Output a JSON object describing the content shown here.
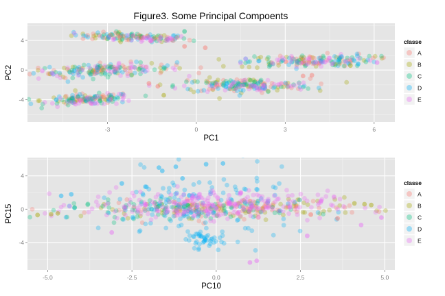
{
  "figure_title": "Figure3. Some Principal Compoents",
  "colors": {
    "panel_bg": "#E5E5E5",
    "grid_major": "#FFFFFF",
    "grid_minor": "#F2F2F2",
    "A": "#F8766D",
    "B": "#A3A500",
    "C": "#00BF7D",
    "D": "#00B0F6",
    "E": "#E76BF3"
  },
  "chart_data": [
    {
      "type": "scatter",
      "title": "Figure3. Some Principal Compoents",
      "xlabel": "PC1",
      "ylabel": "PC2",
      "xlim": [
        -5.7,
        6.7
      ],
      "ylim": [
        -7,
        6.3
      ],
      "xticks": [
        -3,
        0,
        3,
        6
      ],
      "yticks": [
        -4,
        0,
        4
      ],
      "grid": true,
      "alpha": 0.3,
      "legend": {
        "title": "classe",
        "position": "right",
        "entries": [
          "A",
          "B",
          "C",
          "D",
          "E"
        ]
      },
      "clusters": [
        {
          "center": [
            -2.1,
            4.4
          ],
          "spread": [
            0.95,
            0.28
          ],
          "tilt": -0.15,
          "classes": [
            "B",
            "D",
            "C",
            "A",
            "E"
          ],
          "n": 150
        },
        {
          "center": [
            -3.1,
            0.0
          ],
          "spread": [
            1.2,
            0.42
          ],
          "tilt": 0.12,
          "classes": [
            "B",
            "A",
            "D",
            "C",
            "E"
          ],
          "n": 190
        },
        {
          "center": [
            -3.6,
            -3.95
          ],
          "spread": [
            0.75,
            0.35
          ],
          "tilt": 0.15,
          "classes": [
            "B",
            "A",
            "D",
            "C",
            "E"
          ],
          "n": 160
        },
        {
          "center": [
            1.6,
            -2.1
          ],
          "spread": [
            1.15,
            0.45
          ],
          "tilt": 0.0,
          "classes": [
            "B",
            "A",
            "C",
            "D",
            "E"
          ],
          "n": 200
        },
        {
          "center": [
            3.8,
            1.2
          ],
          "spread": [
            1.1,
            0.42
          ],
          "tilt": 0.1,
          "classes": [
            "B",
            "A",
            "C",
            "D",
            "E"
          ],
          "n": 180
        }
      ],
      "outliers": [
        {
          "class": "A",
          "x": -0.4,
          "y": 3.2
        },
        {
          "class": "A",
          "x": 0.3,
          "y": 3.0
        },
        {
          "class": "A",
          "x": -1.6,
          "y": -1.8
        },
        {
          "class": "A",
          "x": -1.3,
          "y": -2.2
        },
        {
          "class": "A",
          "x": 3.6,
          "y": -0.8
        },
        {
          "class": "A",
          "x": 3.9,
          "y": -0.7
        },
        {
          "class": "B",
          "x": -1.1,
          "y": -3.4
        },
        {
          "class": "B",
          "x": 5.2,
          "y": 0.6
        },
        {
          "class": "C",
          "x": -0.4,
          "y": 5.2
        },
        {
          "class": "E",
          "x": 6.1,
          "y": 1.0
        },
        {
          "class": "E",
          "x": -5.2,
          "y": -0.1
        },
        {
          "class": "D",
          "x": 4.9,
          "y": 1.8
        }
      ]
    },
    {
      "type": "scatter",
      "title": "",
      "xlabel": "PC10",
      "ylabel": "PC15",
      "xlim": [
        -5.6,
        5.3
      ],
      "ylim": [
        -7.3,
        6.2
      ],
      "xticks": [
        -5.0,
        -2.5,
        0.0,
        2.5,
        5.0
      ],
      "xtick_labels": [
        "-5.0",
        "-2.5",
        "0.0",
        "2.5",
        "5.0"
      ],
      "yticks": [
        -4,
        0,
        4
      ],
      "grid": true,
      "alpha": 0.3,
      "legend": {
        "title": "classe",
        "position": "right",
        "entries": [
          "A",
          "B",
          "C",
          "D",
          "E"
        ]
      },
      "clusters": [
        {
          "center": [
            0.5,
            0.1
          ],
          "spread": [
            2.0,
            0.55
          ],
          "tilt": 0.05,
          "classes": [
            "B",
            "A"
          ],
          "n": 180
        },
        {
          "center": [
            -1.0,
            0.0
          ],
          "spread": [
            1.6,
            0.55
          ],
          "tilt": 0.0,
          "classes": [
            "C"
          ],
          "n": 90
        },
        {
          "center": [
            -0.5,
            0.3
          ],
          "spread": [
            1.5,
            2.1
          ],
          "tilt": 0.0,
          "classes": [
            "D"
          ],
          "n": 150
        },
        {
          "center": [
            -0.4,
            -3.7
          ],
          "spread": [
            0.35,
            0.55
          ],
          "tilt": 0.0,
          "classes": [
            "D"
          ],
          "n": 40
        },
        {
          "center": [
            -0.3,
            0.5
          ],
          "spread": [
            1.8,
            0.85
          ],
          "tilt": 0.0,
          "classes": [
            "E"
          ],
          "n": 260
        }
      ],
      "outliers": [
        {
          "class": "D",
          "x": -1.7,
          "y": 5.0
        },
        {
          "class": "D",
          "x": -1.2,
          "y": 5.1
        },
        {
          "class": "D",
          "x": -0.3,
          "y": 5.4
        },
        {
          "class": "D",
          "x": 0.2,
          "y": 5.5
        },
        {
          "class": "D",
          "x": -1.6,
          "y": 4.6
        },
        {
          "class": "D",
          "x": -2.1,
          "y": 2.7
        },
        {
          "class": "D",
          "x": -2.8,
          "y": 3.1
        },
        {
          "class": "D",
          "x": -1.0,
          "y": 3.7
        },
        {
          "class": "D",
          "x": -4.3,
          "y": 1.8
        },
        {
          "class": "D",
          "x": -4.6,
          "y": 1.6
        },
        {
          "class": "B",
          "x": -5.3,
          "y": -0.7
        },
        {
          "class": "B",
          "x": -4.9,
          "y": -0.6
        },
        {
          "class": "B",
          "x": -4.7,
          "y": -0.5
        },
        {
          "class": "B",
          "x": 4.6,
          "y": 0.5
        },
        {
          "class": "B",
          "x": 4.4,
          "y": 0.6
        },
        {
          "class": "B",
          "x": 4.1,
          "y": 0.7
        },
        {
          "class": "E",
          "x": 4.9,
          "y": -1.0
        },
        {
          "class": "E",
          "x": 1.2,
          "y": -6.2
        },
        {
          "class": "E",
          "x": 1.0,
          "y": -6.4
        },
        {
          "class": "E",
          "x": 4.3,
          "y": -1.9
        },
        {
          "class": "E",
          "x": -3.1,
          "y": -2.8
        },
        {
          "class": "E",
          "x": 2.7,
          "y": -3.2
        },
        {
          "class": "A",
          "x": 3.6,
          "y": -1.1
        },
        {
          "class": "C",
          "x": -4.2,
          "y": 0.2
        }
      ]
    }
  ]
}
